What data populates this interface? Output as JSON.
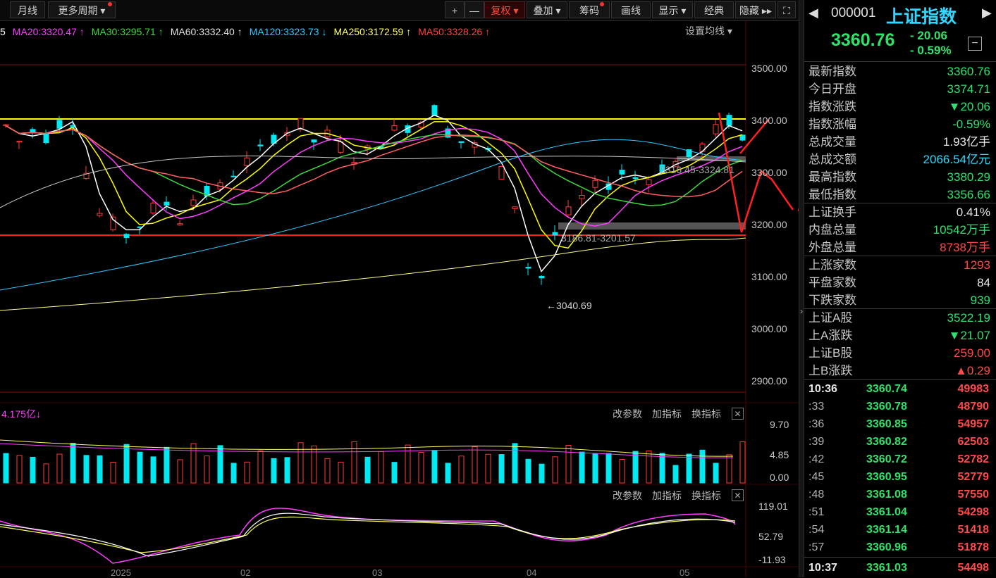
{
  "toolbar": {
    "monthly": "月线",
    "more_period": "更多周期",
    "plus": "+",
    "minus": "—",
    "restore": "复权",
    "overlay": "叠加",
    "chips": "筹码",
    "draw": "画线",
    "display": "显示",
    "classic": "经典",
    "hide": "隐藏",
    "fullscreen": "⛶"
  },
  "ma_legend": [
    {
      "label": "5",
      "color": "#ffffff",
      "arrow": ""
    },
    {
      "label": "MA20:3320.47",
      "color": "#ff3cff",
      "arrow": "↑"
    },
    {
      "label": "MA30:3295.71",
      "color": "#3cd83c",
      "arrow": "↑"
    },
    {
      "label": "MA60:3332.40",
      "color": "#e0e0e0",
      "arrow": "↑"
    },
    {
      "label": "MA120:3323.73",
      "color": "#30c8ff",
      "arrow": "↓"
    },
    {
      "label": "MA250:3172.59",
      "color": "#ffff60",
      "arrow": "↑"
    },
    {
      "label": "MA50:3328.26",
      "color": "#ff4040",
      "arrow": "↑"
    }
  ],
  "settings_ma": "设置均线",
  "price_axis": [
    "3500.00",
    "3400.00",
    "3300.00",
    "3200.00",
    "3100.00",
    "3000.00",
    "2900.00"
  ],
  "annotations": {
    "low": "3040.69",
    "gap_low": "3186.81-3201.57",
    "gap_high": "3316.45-3324.81"
  },
  "volume": {
    "label": "4.175亿",
    "arrow": "↓",
    "axis": [
      "9.70",
      "4.85",
      "0.00"
    ],
    "buttons": [
      "改参数",
      "加指标",
      "换指标"
    ]
  },
  "indicator": {
    "axis": [
      "119.01",
      "52.79",
      "-11.93"
    ],
    "buttons": [
      "改参数",
      "加指标",
      "换指标"
    ]
  },
  "x_axis": [
    "2025",
    "02",
    "03",
    "04",
    "05"
  ],
  "quote": {
    "code": "000001",
    "name": "上证指数",
    "price": "3360.76",
    "change": "- 20.06",
    "change_pct": "- 0.59%",
    "collapse": "−"
  },
  "stats": [
    {
      "k": "最新指数",
      "v": "3360.76",
      "c": "green"
    },
    {
      "k": "今日开盘",
      "v": "3374.71",
      "c": "green"
    },
    {
      "k": "指数涨跌",
      "v": "▼20.06",
      "c": "green"
    },
    {
      "k": "指数涨幅",
      "v": "-0.59%",
      "c": "green"
    },
    {
      "k": "总成交量",
      "v": "1.93亿手",
      "c": "white"
    },
    {
      "k": "总成交额",
      "v": "2066.54亿元",
      "c": "cyan"
    },
    {
      "k": "最高指数",
      "v": "3380.29",
      "c": "green"
    },
    {
      "k": "最低指数",
      "v": "3356.66",
      "c": "green"
    }
  ],
  "stats2": [
    {
      "k": "上证换手",
      "v": "0.41%",
      "c": "white"
    },
    {
      "k": "内盘总量",
      "v": "10542万手",
      "c": "green"
    },
    {
      "k": "外盘总量",
      "v": "8738万手",
      "c": "red"
    }
  ],
  "stats3": [
    {
      "k": "上涨家数",
      "v": "1293",
      "c": "red"
    },
    {
      "k": "平盘家数",
      "v": "84",
      "c": "white"
    },
    {
      "k": "下跌家数",
      "v": "939",
      "c": "green"
    }
  ],
  "stats4": [
    {
      "k": "上证A股",
      "v": "3522.19",
      "c": "green"
    },
    {
      "k": "上A涨跌",
      "v": "▼21.07",
      "c": "green"
    },
    {
      "k": "上证B股",
      "v": "259.00",
      "c": "red"
    },
    {
      "k": "上B涨跌",
      "v": "▲0.29",
      "c": "red"
    }
  ],
  "ticks": [
    {
      "t": "10:36",
      "p": "3360.74",
      "v": "49983"
    },
    {
      "t": ":33",
      "p": "3360.78",
      "v": "48790"
    },
    {
      "t": ":36",
      "p": "3360.85",
      "v": "54957"
    },
    {
      "t": ":39",
      "p": "3360.82",
      "v": "62503"
    },
    {
      "t": ":42",
      "p": "3360.72",
      "v": "52782"
    },
    {
      "t": ":45",
      "p": "3360.95",
      "v": "52779"
    },
    {
      "t": ":48",
      "p": "3361.08",
      "v": "57550"
    },
    {
      "t": ":51",
      "p": "3361.04",
      "v": "54298"
    },
    {
      "t": ":54",
      "p": "3361.14",
      "v": "51418"
    },
    {
      "t": ":57",
      "p": "3360.96",
      "v": "51878"
    },
    {
      "t": "10:37",
      "p": "3361.03",
      "v": "54498"
    }
  ]
}
